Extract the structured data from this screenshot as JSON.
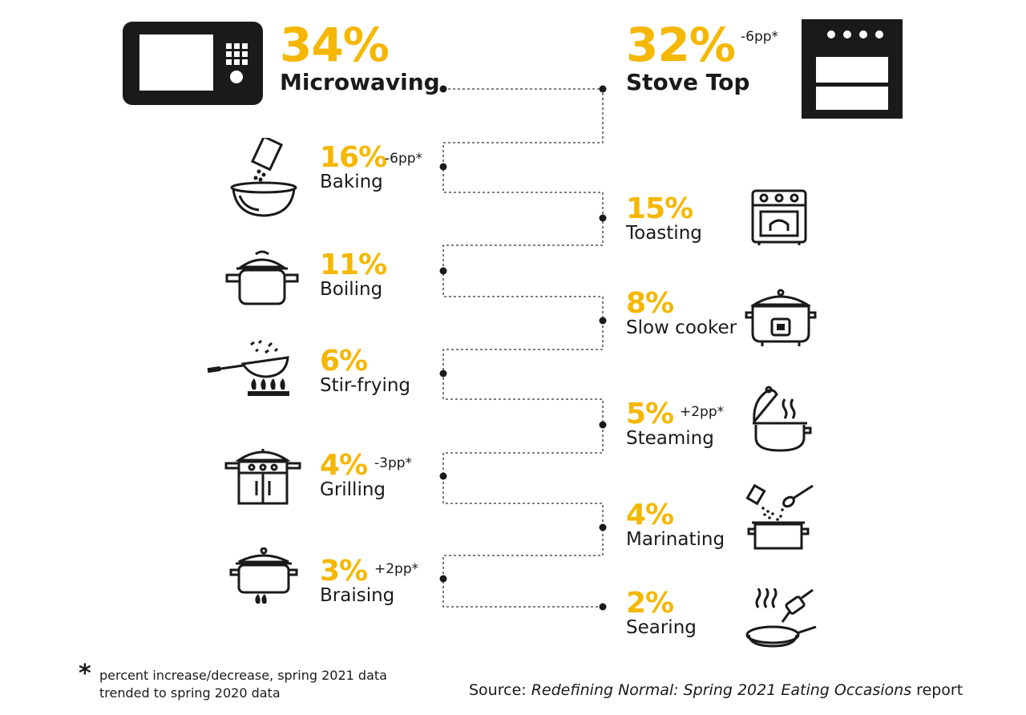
{
  "chart_data": {
    "type": "infographic",
    "unit": "%",
    "items": [
      {
        "label": "Microwaving",
        "value": 34,
        "value_text": "34%",
        "change": "",
        "icon": "microwave-icon"
      },
      {
        "label": "Stove Top",
        "value": 32,
        "value_text": "32%",
        "change": "-6pp*",
        "icon": "stove-icon"
      },
      {
        "label": "Baking",
        "value": 16,
        "value_text": "16%",
        "change": "-6pp*",
        "icon": "mixing-bowl-icon"
      },
      {
        "label": "Toasting",
        "value": 15,
        "value_text": "15%",
        "change": "",
        "icon": "toaster-oven-icon"
      },
      {
        "label": "Boiling",
        "value": 11,
        "value_text": "11%",
        "change": "",
        "icon": "pot-icon"
      },
      {
        "label": "Slow cooker",
        "value": 8,
        "value_text": "8%",
        "change": "",
        "icon": "slow-cooker-icon"
      },
      {
        "label": "Stir-frying",
        "value": 6,
        "value_text": "6%",
        "change": "",
        "icon": "wok-icon"
      },
      {
        "label": "Steaming",
        "value": 5,
        "value_text": "5%",
        "change": "+2pp*",
        "icon": "steamer-pot-icon"
      },
      {
        "label": "Grilling",
        "value": 4,
        "value_text": "4%",
        "change": "-3pp*",
        "icon": "grill-icon"
      },
      {
        "label": "Marinating",
        "value": 4,
        "value_text": "4%",
        "change": "",
        "icon": "marinating-pot-icon"
      },
      {
        "label": "Braising",
        "value": 3,
        "value_text": "3%",
        "change": "+2pp*",
        "icon": "braising-pot-icon"
      },
      {
        "label": "Searing",
        "value": 2,
        "value_text": "2%",
        "change": "",
        "icon": "searing-pan-icon"
      }
    ]
  },
  "footnote": {
    "star": "*",
    "text": "percent increase/decrease, spring 2021 data trended to spring 2020 data"
  },
  "source": {
    "prefix": "Source: ",
    "title": "Redefining Normal: Spring 2021 Eating Occasions",
    "suffix": " report"
  }
}
